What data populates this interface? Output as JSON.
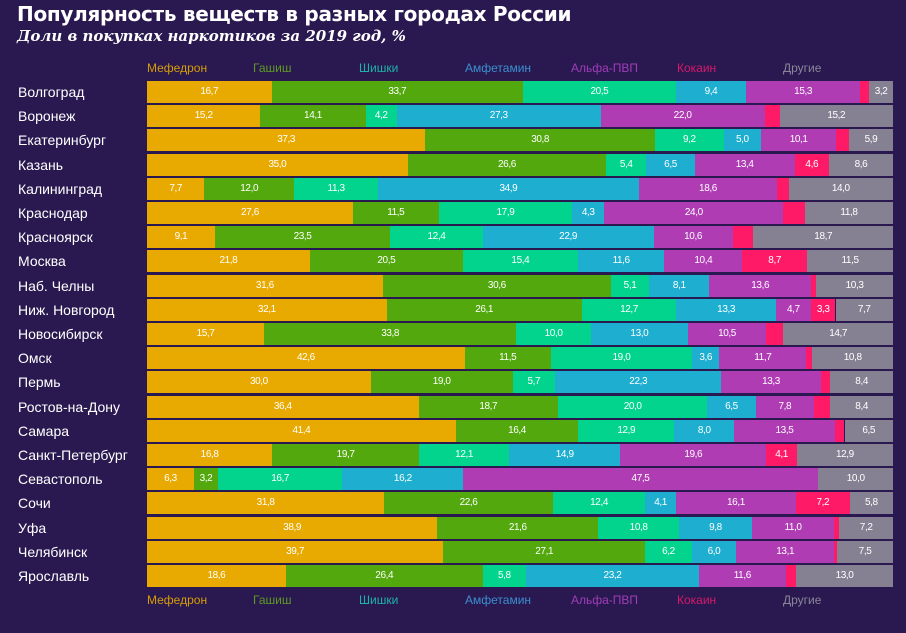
{
  "chart_data": {
    "type": "bar",
    "orientation": "horizontal",
    "stacked": true,
    "title": "Популярность веществ в разных городах России",
    "subtitle": "Доли в покупках наркотиков за 2019 год, %",
    "legend_placement": "top and bottom",
    "xlim": [
      0,
      100
    ],
    "series": [
      {
        "name": "Мефедрон",
        "color": "#e8aa00",
        "legend_color": "#d79d06"
      },
      {
        "name": "Гашиш",
        "color": "#52a80c",
        "legend_color": "#5f9a22"
      },
      {
        "name": "Шишки",
        "color": "#02d48e",
        "legend_color": "#1fb3a8"
      },
      {
        "name": "Амфетамин",
        "color": "#1eaed0",
        "legend_color": "#3a8fd0"
      },
      {
        "name": "Альфа-ПВП",
        "color": "#b03cb4",
        "legend_color": "#a03cb8"
      },
      {
        "name": "Кокаин",
        "color": "#ff1a68",
        "legend_color": "#d41a6a"
      },
      {
        "name": "Другие",
        "color": "#858192",
        "legend_color": "#8a8698"
      }
    ],
    "categories": [
      "Волгоград",
      "Воронеж",
      "Екатеринбург",
      "Казань",
      "Калининград",
      "Краснодар",
      "Красноярск",
      "Москва",
      "Наб. Челны",
      "Ниж. Новгород",
      "Новосибирск",
      "Омск",
      "Пермь",
      "Ростов-на-Дону",
      "Самара",
      "Санкт-Петербург",
      "Севастополь",
      "Сочи",
      "Уфа",
      "Челябинск",
      "Ярославль"
    ],
    "values": [
      [
        16.7,
        33.7,
        20.5,
        9.4,
        15.3,
        1.2,
        3.2
      ],
      [
        15.2,
        14.1,
        4.2,
        27.3,
        22.0,
        2.0,
        15.2
      ],
      [
        37.3,
        30.8,
        9.2,
        5.0,
        10.1,
        1.7,
        5.9
      ],
      [
        35.0,
        26.6,
        5.4,
        6.5,
        13.4,
        4.6,
        8.6
      ],
      [
        7.7,
        12.0,
        11.3,
        34.9,
        18.6,
        1.5,
        14.0
      ],
      [
        27.6,
        11.5,
        17.9,
        4.3,
        24.0,
        2.9,
        11.8
      ],
      [
        9.1,
        23.5,
        12.4,
        22.9,
        10.6,
        2.8,
        18.7
      ],
      [
        21.8,
        20.5,
        15.4,
        11.6,
        10.4,
        8.7,
        11.5
      ],
      [
        31.6,
        30.6,
        5.1,
        8.1,
        13.6,
        0.7,
        10.3
      ],
      [
        32.1,
        26.1,
        12.7,
        13.3,
        4.7,
        3.3,
        7.7
      ],
      [
        15.7,
        33.8,
        10.0,
        13.0,
        10.5,
        2.3,
        14.7
      ],
      [
        42.6,
        11.5,
        19.0,
        3.6,
        11.7,
        0.8,
        10.8
      ],
      [
        30.0,
        19.0,
        5.7,
        22.3,
        13.3,
        1.3,
        8.4
      ],
      [
        36.4,
        18.7,
        20.0,
        6.5,
        7.8,
        2.2,
        8.4
      ],
      [
        41.4,
        16.4,
        12.9,
        8.0,
        13.5,
        1.3,
        6.5
      ],
      [
        16.8,
        19.7,
        12.1,
        14.9,
        19.6,
        4.1,
        12.9
      ],
      [
        6.3,
        3.2,
        16.7,
        16.2,
        47.5,
        0.1,
        10.0
      ],
      [
        31.8,
        22.6,
        12.4,
        4.1,
        16.1,
        7.2,
        5.8
      ],
      [
        38.9,
        21.6,
        10.8,
        9.8,
        11.0,
        0.7,
        7.2
      ],
      [
        39.7,
        27.1,
        6.2,
        6.0,
        13.1,
        0.4,
        7.5
      ],
      [
        18.6,
        26.4,
        5.8,
        23.2,
        11.6,
        1.4,
        13.0
      ]
    ]
  }
}
